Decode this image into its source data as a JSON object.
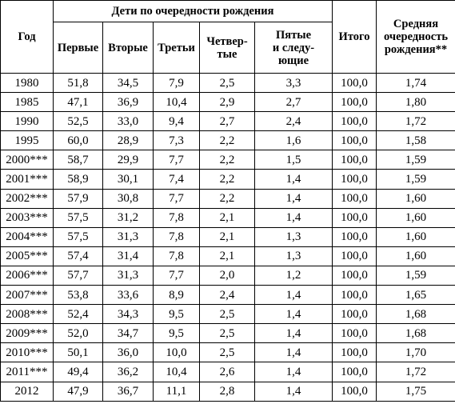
{
  "table": {
    "header": {
      "year": "Год",
      "group": "Дети по очередности рождения",
      "columns": [
        "Первые",
        "Вторые",
        "Третьи",
        "Четвер-\nтые",
        "Пятые\nи следу-\nющие"
      ],
      "total": "Итого",
      "average": "Средняя\nочередность\nрождения**"
    },
    "rows": [
      [
        "1980",
        "51,8",
        "34,5",
        "7,9",
        "2,5",
        "3,3",
        "100,0",
        "1,74"
      ],
      [
        "1985",
        "47,1",
        "36,9",
        "10,4",
        "2,9",
        "2,7",
        "100,0",
        "1,80"
      ],
      [
        "1990",
        "52,5",
        "33,0",
        "9,4",
        "2,7",
        "2,4",
        "100,0",
        "1,72"
      ],
      [
        "1995",
        "60,0",
        "28,9",
        "7,3",
        "2,2",
        "1,6",
        "100,0",
        "1,58"
      ],
      [
        "2000***",
        "58,7",
        "29,9",
        "7,7",
        "2,2",
        "1,5",
        "100,0",
        "1,59"
      ],
      [
        "2001***",
        "58,9",
        "30,1",
        "7,4",
        "2,2",
        "1,4",
        "100,0",
        "1,59"
      ],
      [
        "2002***",
        "57,9",
        "30,8",
        "7,7",
        "2,2",
        "1,4",
        "100,0",
        "1,60"
      ],
      [
        "2003***",
        "57,5",
        "31,2",
        "7,8",
        "2,1",
        "1,4",
        "100,0",
        "1,60"
      ],
      [
        "2004***",
        "57,5",
        "31,3",
        "7,8",
        "2,1",
        "1,3",
        "100,0",
        "1,60"
      ],
      [
        "2005***",
        "57,4",
        "31,4",
        "7,8",
        "2,1",
        "1,3",
        "100,0",
        "1,60"
      ],
      [
        "2006***",
        "57,7",
        "31,3",
        "7,7",
        "2,0",
        "1,2",
        "100,0",
        "1,59"
      ],
      [
        "2007***",
        "53,8",
        "33,6",
        "8,9",
        "2,4",
        "1,4",
        "100,0",
        "1,65"
      ],
      [
        "2008***",
        "52,4",
        "34,3",
        "9,5",
        "2,5",
        "1,4",
        "100,0",
        "1,68"
      ],
      [
        "2009***",
        "52,0",
        "34,7",
        "9,5",
        "2,5",
        "1,4",
        "100,0",
        "1,68"
      ],
      [
        "2010***",
        "50,1",
        "36,0",
        "10,0",
        "2,5",
        "1,4",
        "100,0",
        "1,70"
      ],
      [
        "2011***",
        "49,4",
        "36,2",
        "10,4",
        "2,6",
        "1,4",
        "100,0",
        "1,72"
      ],
      [
        "2012",
        "47,9",
        "36,7",
        "11,1",
        "2,8",
        "1,4",
        "100,0",
        "1,75"
      ]
    ]
  }
}
